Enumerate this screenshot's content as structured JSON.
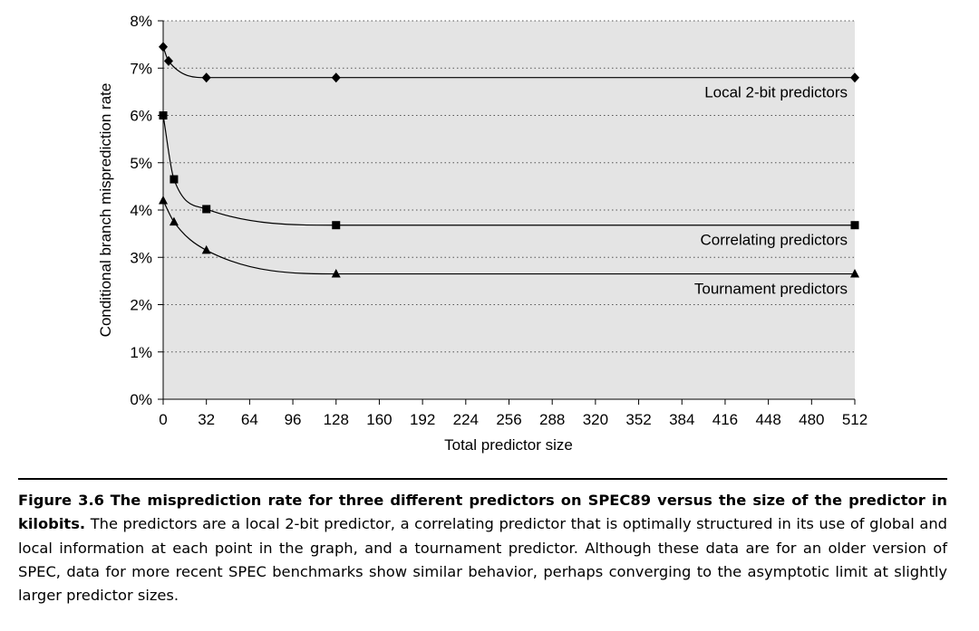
{
  "chart_data": {
    "type": "line",
    "xlabel": "Total predictor size",
    "ylabel": "Conditional branch misprediction rate",
    "xlim": [
      0,
      512
    ],
    "ylim": [
      0,
      8
    ],
    "x_ticks": [
      0,
      32,
      64,
      96,
      128,
      160,
      192,
      224,
      256,
      288,
      320,
      352,
      384,
      416,
      448,
      480,
      512
    ],
    "y_ticks": [
      "0%",
      "1%",
      "2%",
      "3%",
      "4%",
      "5%",
      "6%",
      "7%",
      "8%"
    ],
    "grid": "horizontal dotted",
    "plot_background": "#e4e4e4",
    "series": [
      {
        "name": "Local 2-bit predictors",
        "marker": "diamond",
        "x": [
          0,
          4,
          32,
          128,
          512
        ],
        "y": [
          7.45,
          7.15,
          6.8,
          6.8,
          6.8
        ]
      },
      {
        "name": "Correlating predictors",
        "marker": "square",
        "x": [
          0,
          8,
          32,
          128,
          512
        ],
        "y": [
          6.0,
          4.65,
          4.02,
          3.68,
          3.68
        ]
      },
      {
        "name": "Tournament predictors",
        "marker": "triangle",
        "x": [
          0,
          8,
          32,
          128,
          512
        ],
        "y": [
          4.2,
          3.75,
          3.15,
          2.65,
          2.65
        ]
      }
    ]
  },
  "caption": {
    "label": "Figure 3.6",
    "bold_text": "The misprediction rate for three different predictors on SPEC89 versus the size of the predictor in kilobits.",
    "text": "The predictors are a local 2-bit predictor, a correlating predictor that is optimally structured in its use of global and local information at each point in the graph, and a tournament predictor. Although these data are for an older version of SPEC, data for more recent SPEC benchmarks show similar behavior, perhaps converging to the asymptotic limit at slightly larger predictor sizes."
  }
}
